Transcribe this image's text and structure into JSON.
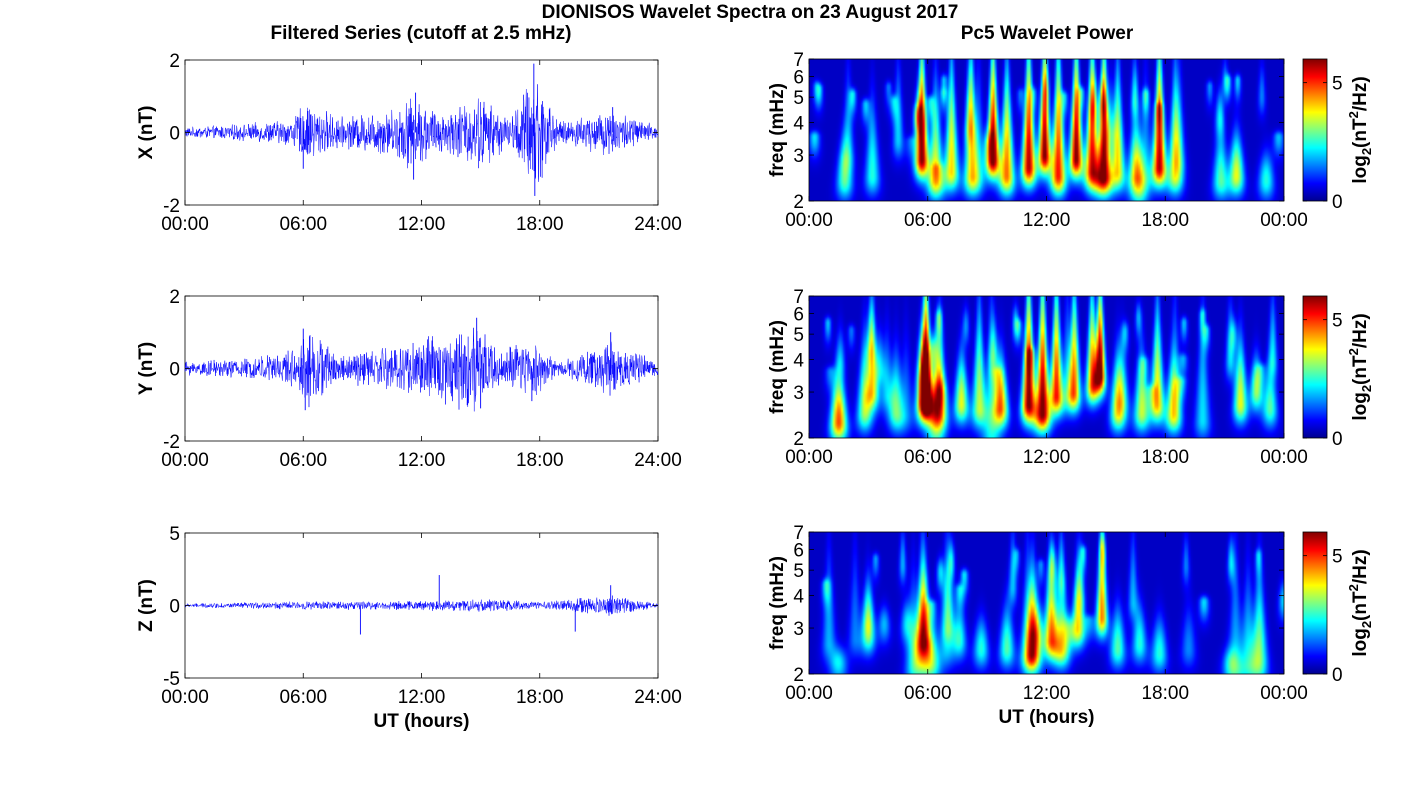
{
  "figure": {
    "title": "DIONISOS Wavelet Spectra on 23 August 2017",
    "left_title": "Filtered Series (cutoff at 2.5 mHz)",
    "right_title": "Pc5 Wavelet Power"
  },
  "colors": {
    "trace": "#0000ff",
    "colormap": [
      "#00008f",
      "#0000ff",
      "#00ffff",
      "#ffff00",
      "#ff0000",
      "#800000"
    ]
  },
  "chart_data": [
    {
      "type": "line",
      "name": "X filtered series",
      "ylabel": "X (nT)",
      "xlabel": "",
      "xlim": [
        0,
        24
      ],
      "ylim": [
        -2,
        2
      ],
      "xticks": [
        "00:00",
        "06:00",
        "12:00",
        "18:00",
        "24:00"
      ],
      "yticks": [
        "-2",
        "0",
        "2"
      ],
      "envelope": [
        {
          "t": 0,
          "a": 0.15
        },
        {
          "t": 3,
          "a": 0.25
        },
        {
          "t": 5.5,
          "a": 0.4
        },
        {
          "t": 6,
          "a": 0.9
        },
        {
          "t": 8,
          "a": 0.45
        },
        {
          "t": 10.5,
          "a": 0.7
        },
        {
          "t": 11.5,
          "a": 1.1
        },
        {
          "t": 13,
          "a": 0.6
        },
        {
          "t": 15,
          "a": 1.1
        },
        {
          "t": 16.5,
          "a": 0.4
        },
        {
          "t": 17.7,
          "a": 1.9
        },
        {
          "t": 19,
          "a": 0.3
        },
        {
          "t": 21.5,
          "a": 0.7
        },
        {
          "t": 24,
          "a": 0.2
        }
      ],
      "spikes": [
        {
          "t": 6.0,
          "v": -1.0
        },
        {
          "t": 11.6,
          "v": -1.3
        },
        {
          "t": 11.7,
          "v": 1.1
        },
        {
          "t": 17.7,
          "v": 1.9
        },
        {
          "t": 17.75,
          "v": -1.75
        },
        {
          "t": 21.7,
          "v": 0.7
        }
      ]
    },
    {
      "type": "line",
      "name": "Y filtered series",
      "ylabel": "Y (nT)",
      "xlabel": "",
      "xlim": [
        0,
        24
      ],
      "ylim": [
        -2,
        2
      ],
      "xticks": [
        "00:00",
        "06:00",
        "12:00",
        "18:00",
        "24:00"
      ],
      "yticks": [
        "-2",
        "0",
        "2"
      ],
      "envelope": [
        {
          "t": 0,
          "a": 0.2
        },
        {
          "t": 3,
          "a": 0.3
        },
        {
          "t": 5.8,
          "a": 0.6
        },
        {
          "t": 6.1,
          "a": 1.2
        },
        {
          "t": 8,
          "a": 0.4
        },
        {
          "t": 11,
          "a": 0.8
        },
        {
          "t": 12,
          "a": 0.9
        },
        {
          "t": 14.8,
          "a": 1.3
        },
        {
          "t": 16,
          "a": 0.5
        },
        {
          "t": 17.6,
          "a": 0.9
        },
        {
          "t": 19,
          "a": 0.2
        },
        {
          "t": 21.6,
          "a": 0.8
        },
        {
          "t": 24,
          "a": 0.2
        }
      ],
      "spikes": [
        {
          "t": 6.1,
          "v": -1.15
        },
        {
          "t": 6.0,
          "v": 1.1
        },
        {
          "t": 14.8,
          "v": 1.4
        },
        {
          "t": 15.0,
          "v": -1.1
        },
        {
          "t": 17.6,
          "v": -0.9
        },
        {
          "t": 21.6,
          "v": 1.0
        }
      ]
    },
    {
      "type": "line",
      "name": "Z filtered series",
      "ylabel": "Z (nT)",
      "xlabel": "UT (hours)",
      "xlim": [
        0,
        24
      ],
      "ylim": [
        -5,
        5
      ],
      "xticks": [
        "00:00",
        "06:00",
        "12:00",
        "18:00",
        "24:00"
      ],
      "yticks": [
        "-5",
        "0",
        "5"
      ],
      "envelope": [
        {
          "t": 0,
          "a": 0.15
        },
        {
          "t": 6,
          "a": 0.3
        },
        {
          "t": 12,
          "a": 0.35
        },
        {
          "t": 15,
          "a": 0.5
        },
        {
          "t": 18,
          "a": 0.25
        },
        {
          "t": 21.6,
          "a": 0.8
        },
        {
          "t": 24,
          "a": 0.15
        }
      ],
      "spikes": [
        {
          "t": 8.9,
          "v": -2.0
        },
        {
          "t": 12.9,
          "v": 2.1
        },
        {
          "t": 19.8,
          "v": -1.8
        },
        {
          "t": 21.6,
          "v": 1.4
        },
        {
          "t": 21.65,
          "v": -0.6
        }
      ]
    },
    {
      "type": "heatmap",
      "name": "X wavelet power",
      "ylabel": "freq (mHz)",
      "xlabel": "",
      "xlim": [
        0,
        24
      ],
      "ylim": [
        2,
        7
      ],
      "yscale": "log",
      "xticks": [
        "00:00",
        "06:00",
        "12:00",
        "18:00",
        "00:00"
      ],
      "yticks": [
        "2",
        "3",
        "4",
        "5",
        "6",
        "7"
      ],
      "colorbar": {
        "label": "log2(nT^2/Hz)",
        "range": [
          0,
          6
        ],
        "ticks": [
          "0",
          "5"
        ]
      },
      "blobs": [
        {
          "t": 1.8,
          "f": 2.4,
          "p": 0.4,
          "top": 3.3
        },
        {
          "t": 3.2,
          "f": 2.5,
          "p": 0.35,
          "top": 4.5
        },
        {
          "t": 5.7,
          "f": 2.9,
          "p": 0.95,
          "top": 7
        },
        {
          "t": 6.4,
          "f": 2.4,
          "p": 0.55,
          "top": 5
        },
        {
          "t": 7.2,
          "f": 2.6,
          "p": 0.6,
          "top": 6.5
        },
        {
          "t": 8.2,
          "f": 2.5,
          "p": 0.55,
          "top": 7
        },
        {
          "t": 9.3,
          "f": 2.9,
          "p": 0.95,
          "top": 7
        },
        {
          "t": 10.0,
          "f": 2.5,
          "p": 0.7,
          "top": 6
        },
        {
          "t": 11.1,
          "f": 2.7,
          "p": 0.9,
          "top": 7
        },
        {
          "t": 11.9,
          "f": 3.0,
          "p": 0.95,
          "top": 7
        },
        {
          "t": 12.6,
          "f": 2.5,
          "p": 0.8,
          "top": 7
        },
        {
          "t": 13.5,
          "f": 2.9,
          "p": 0.95,
          "top": 7
        },
        {
          "t": 14.3,
          "f": 2.6,
          "p": 0.85,
          "top": 7
        },
        {
          "t": 14.9,
          "f": 2.5,
          "p": 0.95,
          "top": 7
        },
        {
          "t": 15.6,
          "f": 2.6,
          "p": 0.6,
          "top": 6
        },
        {
          "t": 16.5,
          "f": 2.5,
          "p": 0.5,
          "top": 4
        },
        {
          "t": 17.7,
          "f": 2.7,
          "p": 0.9,
          "top": 7
        },
        {
          "t": 18.5,
          "f": 2.5,
          "p": 0.5,
          "top": 6
        },
        {
          "t": 20.8,
          "f": 2.4,
          "p": 0.4,
          "top": 3.5
        },
        {
          "t": 21.6,
          "f": 2.5,
          "p": 0.55,
          "top": 3.5
        },
        {
          "t": 23.1,
          "f": 2.4,
          "p": 0.35,
          "top": 3.0
        }
      ]
    },
    {
      "type": "heatmap",
      "name": "Y wavelet power",
      "ylabel": "freq (mHz)",
      "xlabel": "",
      "xlim": [
        0,
        24
      ],
      "ylim": [
        2,
        7
      ],
      "yscale": "log",
      "xticks": [
        "00:00",
        "06:00",
        "12:00",
        "18:00",
        "00:00"
      ],
      "yticks": [
        "2",
        "3",
        "4",
        "5",
        "6",
        "7"
      ],
      "colorbar": {
        "label": "log2(nT^2/Hz)",
        "range": [
          0,
          6
        ],
        "ticks": [
          "0",
          "5"
        ]
      },
      "blobs": [
        {
          "t": 1.5,
          "f": 2.3,
          "p": 0.75,
          "top": 3.3
        },
        {
          "t": 2.8,
          "f": 2.5,
          "p": 0.45,
          "top": 4.5
        },
        {
          "t": 3.2,
          "f": 3.0,
          "p": 0.55,
          "top": 6
        },
        {
          "t": 4.4,
          "f": 2.5,
          "p": 0.4,
          "top": 4
        },
        {
          "t": 5.9,
          "f": 2.8,
          "p": 1.0,
          "top": 7
        },
        {
          "t": 6.6,
          "f": 2.5,
          "p": 0.6,
          "top": 5
        },
        {
          "t": 7.7,
          "f": 2.7,
          "p": 0.55,
          "top": 4
        },
        {
          "t": 8.6,
          "f": 2.6,
          "p": 0.5,
          "top": 6
        },
        {
          "t": 9.7,
          "f": 2.6,
          "p": 0.5,
          "top": 4
        },
        {
          "t": 11.1,
          "f": 2.7,
          "p": 0.95,
          "top": 7
        },
        {
          "t": 11.8,
          "f": 2.5,
          "p": 0.95,
          "top": 7
        },
        {
          "t": 12.5,
          "f": 2.9,
          "p": 0.8,
          "top": 7
        },
        {
          "t": 13.4,
          "f": 3.0,
          "p": 0.7,
          "top": 7
        },
        {
          "t": 14.3,
          "f": 3.2,
          "p": 0.7,
          "top": 7
        },
        {
          "t": 14.7,
          "f": 3.5,
          "p": 1.0,
          "top": 7
        },
        {
          "t": 15.6,
          "f": 2.5,
          "p": 0.5,
          "top": 4
        },
        {
          "t": 16.8,
          "f": 2.5,
          "p": 0.5,
          "top": 4
        },
        {
          "t": 17.6,
          "f": 2.7,
          "p": 0.6,
          "top": 6
        },
        {
          "t": 18.4,
          "f": 2.5,
          "p": 0.4,
          "top": 3.8
        },
        {
          "t": 21.8,
          "f": 2.7,
          "p": 0.55,
          "top": 4.5
        },
        {
          "t": 22.6,
          "f": 3.0,
          "p": 0.45,
          "top": 4
        },
        {
          "t": 23.3,
          "f": 2.6,
          "p": 0.4,
          "top": 3.5
        }
      ]
    },
    {
      "type": "heatmap",
      "name": "Z wavelet power",
      "ylabel": "freq (mHz)",
      "xlabel": "UT (hours)",
      "xlim": [
        0,
        24
      ],
      "ylim": [
        2,
        7
      ],
      "yscale": "log",
      "xticks": [
        "00:00",
        "06:00",
        "12:00",
        "18:00",
        "00:00"
      ],
      "yticks": [
        "2",
        "3",
        "4",
        "5",
        "6",
        "7"
      ],
      "colorbar": {
        "label": "log2(nT^2/Hz)",
        "range": [
          0,
          6
        ],
        "ticks": [
          "0",
          "5"
        ]
      },
      "blobs": [
        {
          "t": 1.5,
          "f": 2.2,
          "p": 0.3,
          "top": 2.5
        },
        {
          "t": 3.0,
          "f": 2.8,
          "p": 0.35,
          "top": 4
        },
        {
          "t": 3.8,
          "f": 3.1,
          "p": 0.25,
          "top": 3.6
        },
        {
          "t": 5.8,
          "f": 2.7,
          "p": 0.65,
          "top": 5
        },
        {
          "t": 6.2,
          "f": 2.2,
          "p": 0.4,
          "top": 3
        },
        {
          "t": 7.6,
          "f": 2.7,
          "p": 0.35,
          "top": 3.5
        },
        {
          "t": 8.7,
          "f": 2.5,
          "p": 0.35,
          "top": 3.2
        },
        {
          "t": 10.0,
          "f": 2.5,
          "p": 0.4,
          "top": 3.5
        },
        {
          "t": 11.3,
          "f": 2.4,
          "p": 0.75,
          "top": 4.5
        },
        {
          "t": 12.2,
          "f": 2.7,
          "p": 0.55,
          "top": 5
        },
        {
          "t": 12.8,
          "f": 2.5,
          "p": 0.5,
          "top": 4
        },
        {
          "t": 13.6,
          "f": 3.0,
          "p": 0.55,
          "top": 5
        },
        {
          "t": 14.8,
          "f": 3.3,
          "p": 0.7,
          "top": 6.5
        },
        {
          "t": 15.6,
          "f": 2.5,
          "p": 0.4,
          "top": 3.5
        },
        {
          "t": 16.7,
          "f": 2.6,
          "p": 0.35,
          "top": 3.5
        },
        {
          "t": 17.7,
          "f": 2.4,
          "p": 0.35,
          "top": 3.2
        },
        {
          "t": 21.3,
          "f": 2.2,
          "p": 0.25,
          "top": 2.5
        }
      ]
    }
  ]
}
